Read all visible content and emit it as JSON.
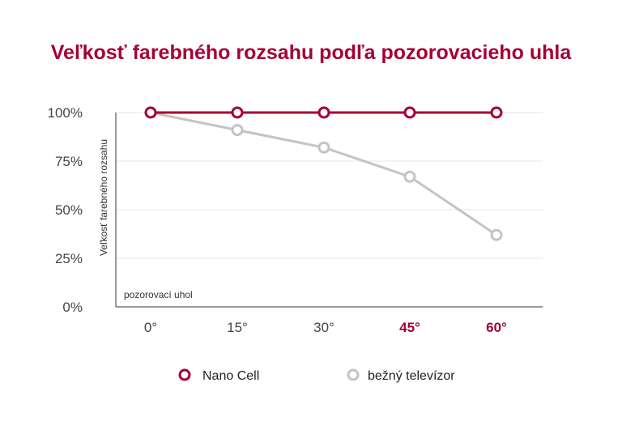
{
  "chart_data": {
    "type": "line",
    "title": "Veľkosť farebného rozsahu podľa pozorovacieho uhla",
    "ylabel": "Veľkosť farebného rozsahu",
    "xlabel": "pozorovací uhol",
    "categories": [
      "0°",
      "15°",
      "30°",
      "45°",
      "60°"
    ],
    "highlighted_categories": [
      "45°",
      "60°"
    ],
    "yticks": [
      "0%",
      "25%",
      "50%",
      "75%",
      "100%"
    ],
    "ylim": [
      0,
      100
    ],
    "grid": true,
    "legend_placement": "bottom",
    "series": [
      {
        "name": "Nano Cell",
        "color": "#a50034",
        "values": [
          100,
          100,
          100,
          100,
          100
        ]
      },
      {
        "name": "bežný televízor",
        "color": "#c4c4c4",
        "values": [
          100,
          91,
          82,
          67,
          37
        ]
      }
    ],
    "colors": {
      "title": "#a50034",
      "accent": "#a50034",
      "text": "#333333",
      "grid": "#e6e6e6"
    }
  }
}
